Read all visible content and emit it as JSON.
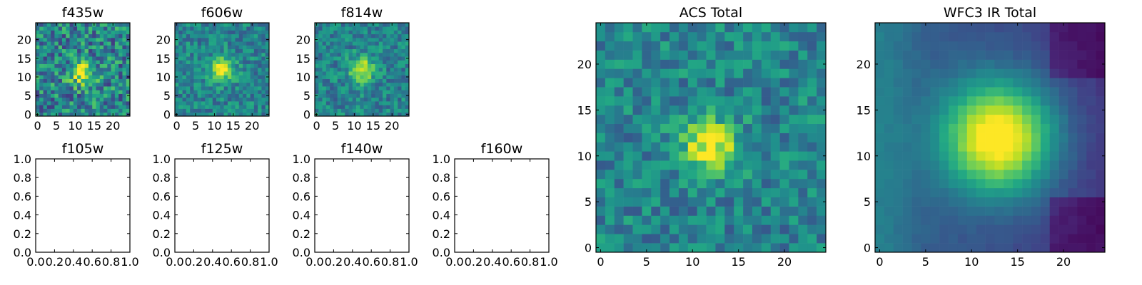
{
  "chart_data": [
    {
      "type": "heatmap",
      "title": "f435w",
      "xticks": [
        "0",
        "5",
        "10",
        "15",
        "20"
      ],
      "yticks": [
        "0",
        "5",
        "10",
        "15",
        "20"
      ],
      "xlim": [
        -0.5,
        24.5
      ],
      "ylim": [
        -0.5,
        24.5
      ],
      "grid": false,
      "description_of_values": "noisy 25x25 image, faint source near (12,11)",
      "peak": [
        12,
        11
      ],
      "noise": "high",
      "colormap": "viridis"
    },
    {
      "type": "heatmap",
      "title": "f606w",
      "xticks": [
        "0",
        "5",
        "10",
        "15",
        "20"
      ],
      "yticks": [
        "0",
        "5",
        "10",
        "15",
        "20"
      ],
      "xlim": [
        -0.5,
        24.5
      ],
      "ylim": [
        -0.5,
        24.5
      ],
      "grid": false,
      "peak": [
        12,
        12
      ],
      "noise": "medium",
      "colormap": "viridis"
    },
    {
      "type": "heatmap",
      "title": "f814w",
      "xticks": [
        "0",
        "5",
        "10",
        "15",
        "20"
      ],
      "yticks": [
        "0",
        "5",
        "10",
        "15",
        "20"
      ],
      "xlim": [
        -0.5,
        24.5
      ],
      "ylim": [
        -0.5,
        24.5
      ],
      "grid": false,
      "peak": [
        12,
        12
      ],
      "noise": "medium",
      "colormap": "viridis"
    },
    {
      "type": "heatmap",
      "title": "f105w",
      "empty": true,
      "xticks": [
        "0.0",
        "0.2",
        "0.4",
        "0.6",
        "0.8",
        "1.0"
      ],
      "yticks": [
        "0.0",
        "0.2",
        "0.4",
        "0.6",
        "0.8",
        "1.0"
      ],
      "xlim": [
        0,
        1
      ],
      "ylim": [
        0,
        1
      ]
    },
    {
      "type": "heatmap",
      "title": "f125w",
      "empty": true,
      "xticks": [
        "0.0",
        "0.2",
        "0.4",
        "0.6",
        "0.8",
        "1.0"
      ],
      "yticks": [
        "0.0",
        "0.2",
        "0.4",
        "0.6",
        "0.8",
        "1.0"
      ],
      "xlim": [
        0,
        1
      ],
      "ylim": [
        0,
        1
      ]
    },
    {
      "type": "heatmap",
      "title": "f140w",
      "empty": true,
      "xticks": [
        "0.0",
        "0.2",
        "0.4",
        "0.6",
        "0.8",
        "1.0"
      ],
      "yticks": [
        "0.0",
        "0.2",
        "0.4",
        "0.6",
        "0.8",
        "1.0"
      ],
      "xlim": [
        0,
        1
      ],
      "ylim": [
        0,
        1
      ]
    },
    {
      "type": "heatmap",
      "title": "f160w",
      "empty": true,
      "xticks": [
        "0.0",
        "0.2",
        "0.4",
        "0.6",
        "0.8",
        "1.0"
      ],
      "yticks": [
        "0.0",
        "0.2",
        "0.4",
        "0.6",
        "0.8",
        "1.0"
      ],
      "xlim": [
        0,
        1
      ],
      "ylim": [
        0,
        1
      ]
    },
    {
      "type": "heatmap",
      "title": "ACS Total",
      "xticks": [
        "0",
        "5",
        "10",
        "15",
        "20"
      ],
      "yticks": [
        "0",
        "5",
        "10",
        "15",
        "20"
      ],
      "xlim": [
        -0.5,
        24.5
      ],
      "ylim": [
        -0.5,
        24.5
      ],
      "grid": false,
      "peak": [
        12,
        11
      ],
      "noise": "medium",
      "colormap": "viridis"
    },
    {
      "type": "heatmap",
      "title": "WFC3 IR Total",
      "xticks": [
        "0",
        "5",
        "10",
        "15",
        "20"
      ],
      "yticks": [
        "0",
        "5",
        "10",
        "15",
        "20"
      ],
      "xlim": [
        -0.5,
        24.5
      ],
      "ylim": [
        -0.5,
        24.5
      ],
      "grid": false,
      "peak": [
        13,
        12
      ],
      "noise": "low",
      "colormap": "viridis"
    }
  ]
}
